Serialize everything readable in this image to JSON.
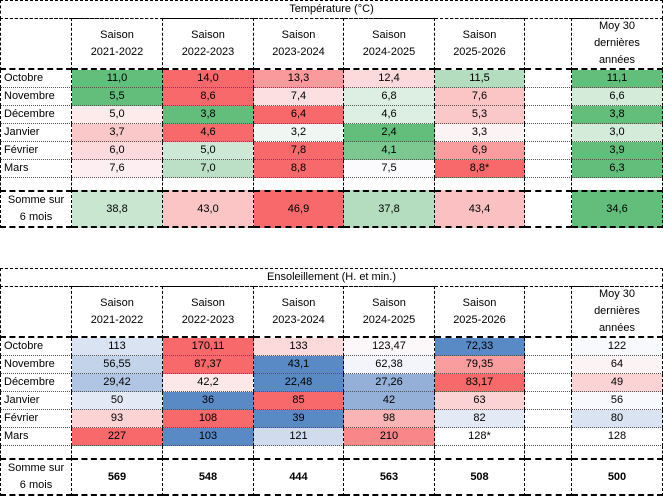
{
  "temperature": {
    "title": "Température (°C)",
    "headers": [
      "",
      "Saison\n2021-2022",
      "Saison\n2022-2023",
      "Saison\n2023-2024",
      "Saison\n2024-2025",
      "Saison\n2025-2026",
      "",
      "Moy 30\ndernières\nannées"
    ],
    "rows": [
      {
        "label": "Octobre",
        "values": [
          "11,0",
          "14,0",
          "13,3",
          "12,4",
          "11,5",
          "",
          "11,1"
        ],
        "colors": [
          "#63BE7B",
          "#F8696B",
          "#FA9A9C",
          "#FCDADB",
          "#B3DDBE",
          "#FFFFFF",
          "#63BE7B"
        ]
      },
      {
        "label": "Novembre",
        "values": [
          "5,5",
          "8,6",
          "7,4",
          "6,8",
          "7,6",
          "",
          "6,6"
        ],
        "colors": [
          "#63BE7B",
          "#F8696B",
          "#FCE0E1",
          "#DDEFE2",
          "#FBC5C6",
          "#FFFFFF",
          "#D4EBDA"
        ]
      },
      {
        "label": "Décembre",
        "values": [
          "5,0",
          "3,8",
          "6,4",
          "4,6",
          "5,3",
          "",
          "3,8"
        ],
        "colors": [
          "#FDEBEC",
          "#63BE7B",
          "#F8696B",
          "#DDEFE2",
          "#FBC8C9",
          "#FFFFFF",
          "#63BE7B"
        ]
      },
      {
        "label": "Janvier",
        "values": [
          "3,7",
          "4,6",
          "3,2",
          "2,4",
          "3,3",
          "",
          "3,0"
        ],
        "colors": [
          "#FBC8C9",
          "#F8696B",
          "#F0F7F2",
          "#63BE7B",
          "#FCF3F5",
          "#FFFFFF",
          "#D4EBDA"
        ]
      },
      {
        "label": "Février",
        "values": [
          "6,0",
          "5,0",
          "7,8",
          "4,1",
          "6,9",
          "",
          "3,9"
        ],
        "colors": [
          "#FCD9DA",
          "#CDE8D4",
          "#F8696B",
          "#7DC891",
          "#FA9D9F",
          "#FFFFFF",
          "#63BE7B"
        ]
      },
      {
        "label": "Mars",
        "values": [
          "7,6",
          "7,0",
          "8,8",
          "7,5",
          "8,8*",
          "",
          "6,3"
        ],
        "colors": [
          "#FDEFF1",
          "#BCE0C5",
          "#F8696B",
          "#FBFBFD",
          "#F8696B",
          "#FFFFFF",
          "#63BE7B"
        ]
      }
    ],
    "sum": {
      "label": "Somme sur\n6 mois",
      "values": [
        "38,8",
        "43,0",
        "46,9",
        "37,8",
        "43,4",
        "",
        "34,6"
      ],
      "colors": [
        "#C9E6D1",
        "#FBC5C6",
        "#F8696B",
        "#B3DDBE",
        "#FBC0C1",
        "#FFFFFF",
        "#63BE7B"
      ]
    }
  },
  "sunshine": {
    "title": "Ensoleillement (H. et min.)",
    "headers": [
      "",
      "Saison\n2021-2022",
      "Saison\n2022-2023",
      "Saison\n2023-2024",
      "Saison\n2024-2025",
      "Saison\n2025-2026",
      "",
      "Moy 30\ndernières\nannées"
    ],
    "rows": [
      {
        "label": "Octobre",
        "values": [
          "113",
          "170,11",
          "133",
          "123,47",
          "72,33",
          "",
          "122"
        ],
        "colors": [
          "#DAE3F1",
          "#F8696B",
          "#FCDADB",
          "#FCF8FA",
          "#5A8AC6",
          "#FFFFFF",
          "#F8F9FC"
        ]
      },
      {
        "label": "Novembre",
        "values": [
          "56,55",
          "87,37",
          "43,1",
          "62,38",
          "79,35",
          "",
          "64"
        ],
        "colors": [
          "#C3D3EA",
          "#F8696B",
          "#5A8AC6",
          "#F3F5FA",
          "#FA9D9F",
          "#FFFFFF",
          "#FCF3F5"
        ]
      },
      {
        "label": "Décembre",
        "values": [
          "29,42",
          "42,2",
          "22,48",
          "27,26",
          "83,17",
          "",
          "49"
        ],
        "colors": [
          "#B0C5E3",
          "#FCE8E9",
          "#5A8AC6",
          "#94B0D9",
          "#F8696B",
          "#FFFFFF",
          "#FBD3D4"
        ]
      },
      {
        "label": "Janvier",
        "values": [
          "50",
          "36",
          "85",
          "42",
          "63",
          "",
          "56"
        ],
        "colors": [
          "#E3EAF5",
          "#5A8AC6",
          "#F8696B",
          "#94B0D9",
          "#FBD3D4",
          "#FFFFFF",
          "#F8F9FC"
        ]
      },
      {
        "label": "Février",
        "values": [
          "93",
          "108",
          "39",
          "98",
          "82",
          "",
          "80"
        ],
        "colors": [
          "#FBD3D4",
          "#F8696B",
          "#5A8AC6",
          "#FAB4B5",
          "#E3EAF5",
          "#FFFFFF",
          "#DAE3F1"
        ]
      },
      {
        "label": "Mars",
        "values": [
          "227",
          "103",
          "121",
          "210",
          "128*",
          "",
          "128"
        ],
        "colors": [
          "#F8696B",
          "#5A8AC6",
          "#D0DCEE",
          "#F98789",
          "#FFFFFF",
          "#FFFFFF",
          "#FFFFFF"
        ]
      }
    ],
    "sum": {
      "label": "Somme sur\n6 mois",
      "values": [
        "569",
        "548",
        "444",
        "563",
        "508",
        "",
        "500"
      ],
      "colors": [
        "#FFFFFF",
        "#FFFFFF",
        "#FFFFFF",
        "#FFFFFF",
        "#FFFFFF",
        "#FFFFFF",
        "#FFFFFF"
      ]
    }
  }
}
